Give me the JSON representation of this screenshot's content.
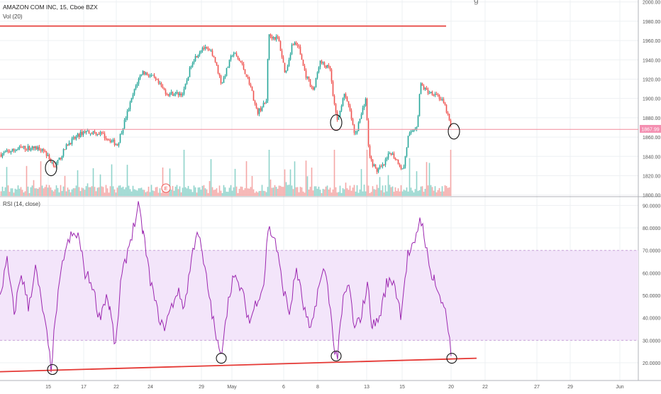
{
  "header": {
    "symbol_line": "AMAZON COM INC, 15, Cboe BZX",
    "volume_indicator": "Vol (20)",
    "rsi_indicator": "RSI (14, close)",
    "earnings_marker": "E",
    "truncated_top_char": "g"
  },
  "colors": {
    "up": "#26a69a",
    "down": "#ef5350",
    "vol_up": "#8fd3cb",
    "vol_down": "#f4a7a6",
    "rsi_line": "#9c27b0",
    "rsi_band": "#f3e5fa",
    "annotation_line": "#e53935",
    "price_label_bg": "#f48fb1",
    "grid": "#eef0f3",
    "axis_text": "#555555"
  },
  "chart_data": [
    {
      "type": "candlestick",
      "title": "AMAZON COM INC, 15, Cboe BZX",
      "y_axis_ticks": [
        "2000.00",
        "1980.00",
        "1960.00",
        "1940.00",
        "1920.00",
        "1900.00",
        "1880.00",
        "1860.00",
        "1840.00",
        "1820.00",
        "1800.00"
      ],
      "ylim": [
        1799,
        2002
      ],
      "current_price_label": "1867.99",
      "horizontal_lines": [
        {
          "y": 1975,
          "x_start": "Apr 11",
          "x_end": "May 16",
          "color": "red"
        },
        {
          "y": 1867.99,
          "x_start": "Apr 11",
          "x_end": "Jun 1",
          "color": "pink"
        }
      ],
      "close_series": [
        {
          "x": 0,
          "y": 1842
        },
        {
          "x": 30,
          "y": 1849
        },
        {
          "x": 60,
          "y": 1848
        },
        {
          "x": 70,
          "y": 1836
        },
        {
          "x": 78,
          "y": 1830
        },
        {
          "x": 95,
          "y": 1853
        },
        {
          "x": 118,
          "y": 1866
        },
        {
          "x": 140,
          "y": 1864
        },
        {
          "x": 165,
          "y": 1852
        },
        {
          "x": 175,
          "y": 1876
        },
        {
          "x": 192,
          "y": 1915
        },
        {
          "x": 200,
          "y": 1928
        },
        {
          "x": 215,
          "y": 1922
        },
        {
          "x": 235,
          "y": 1905
        },
        {
          "x": 258,
          "y": 1905
        },
        {
          "x": 270,
          "y": 1938
        },
        {
          "x": 285,
          "y": 1953
        },
        {
          "x": 300,
          "y": 1946
        },
        {
          "x": 312,
          "y": 1915
        },
        {
          "x": 328,
          "y": 1948
        },
        {
          "x": 340,
          "y": 1936
        },
        {
          "x": 352,
          "y": 1915
        },
        {
          "x": 362,
          "y": 1885
        },
        {
          "x": 375,
          "y": 1897
        },
        {
          "x": 378,
          "y": 1965
        },
        {
          "x": 392,
          "y": 1962
        },
        {
          "x": 402,
          "y": 1925
        },
        {
          "x": 412,
          "y": 1958
        },
        {
          "x": 420,
          "y": 1955
        },
        {
          "x": 430,
          "y": 1925
        },
        {
          "x": 442,
          "y": 1908
        },
        {
          "x": 450,
          "y": 1938
        },
        {
          "x": 465,
          "y": 1930
        },
        {
          "x": 470,
          "y": 1895
        },
        {
          "x": 476,
          "y": 1876
        },
        {
          "x": 484,
          "y": 1905
        },
        {
          "x": 492,
          "y": 1890
        },
        {
          "x": 500,
          "y": 1860
        },
        {
          "x": 515,
          "y": 1900
        },
        {
          "x": 520,
          "y": 1840
        },
        {
          "x": 530,
          "y": 1825
        },
        {
          "x": 540,
          "y": 1830
        },
        {
          "x": 550,
          "y": 1845
        },
        {
          "x": 560,
          "y": 1835
        },
        {
          "x": 568,
          "y": 1825
        },
        {
          "x": 575,
          "y": 1860
        },
        {
          "x": 588,
          "y": 1873
        },
        {
          "x": 592,
          "y": 1915
        },
        {
          "x": 602,
          "y": 1907
        },
        {
          "x": 615,
          "y": 1905
        },
        {
          "x": 625,
          "y": 1895
        },
        {
          "x": 630,
          "y": 1885
        },
        {
          "x": 636,
          "y": 1868
        }
      ]
    },
    {
      "type": "line",
      "title": "RSI (14, close)",
      "y_axis_ticks": [
        "90.0000",
        "80.0000",
        "70.0000",
        "60.0000",
        "50.0000",
        "40.0000",
        "30.0000",
        "20.0000"
      ],
      "ylim": [
        12.1,
        93.6
      ],
      "band": [
        30,
        70
      ],
      "trendline": {
        "y_start": 16,
        "y_end": 22,
        "color": "red"
      },
      "series": [
        {
          "x": 0,
          "y": 50
        },
        {
          "x": 10,
          "y": 65
        },
        {
          "x": 20,
          "y": 42
        },
        {
          "x": 30,
          "y": 60
        },
        {
          "x": 40,
          "y": 45
        },
        {
          "x": 50,
          "y": 62
        },
        {
          "x": 60,
          "y": 44
        },
        {
          "x": 66,
          "y": 32
        },
        {
          "x": 72,
          "y": 18
        },
        {
          "x": 80,
          "y": 45
        },
        {
          "x": 90,
          "y": 68
        },
        {
          "x": 100,
          "y": 76
        },
        {
          "x": 110,
          "y": 77
        },
        {
          "x": 120,
          "y": 60
        },
        {
          "x": 130,
          "y": 55
        },
        {
          "x": 140,
          "y": 40
        },
        {
          "x": 150,
          "y": 50
        },
        {
          "x": 155,
          "y": 44
        },
        {
          "x": 163,
          "y": 26
        },
        {
          "x": 170,
          "y": 55
        },
        {
          "x": 180,
          "y": 70
        },
        {
          "x": 188,
          "y": 80
        },
        {
          "x": 195,
          "y": 89
        },
        {
          "x": 202,
          "y": 78
        },
        {
          "x": 210,
          "y": 60
        },
        {
          "x": 220,
          "y": 45
        },
        {
          "x": 230,
          "y": 35
        },
        {
          "x": 240,
          "y": 43
        },
        {
          "x": 250,
          "y": 52
        },
        {
          "x": 260,
          "y": 45
        },
        {
          "x": 270,
          "y": 66
        },
        {
          "x": 278,
          "y": 80
        },
        {
          "x": 285,
          "y": 68
        },
        {
          "x": 295,
          "y": 50
        },
        {
          "x": 303,
          "y": 34
        },
        {
          "x": 311,
          "y": 22
        },
        {
          "x": 318,
          "y": 40
        },
        {
          "x": 328,
          "y": 58
        },
        {
          "x": 340,
          "y": 53
        },
        {
          "x": 352,
          "y": 38
        },
        {
          "x": 362,
          "y": 48
        },
        {
          "x": 372,
          "y": 55
        },
        {
          "x": 378,
          "y": 80
        },
        {
          "x": 388,
          "y": 75
        },
        {
          "x": 398,
          "y": 55
        },
        {
          "x": 408,
          "y": 42
        },
        {
          "x": 418,
          "y": 62
        },
        {
          "x": 428,
          "y": 45
        },
        {
          "x": 438,
          "y": 33
        },
        {
          "x": 448,
          "y": 52
        },
        {
          "x": 458,
          "y": 62
        },
        {
          "x": 466,
          "y": 45
        },
        {
          "x": 470,
          "y": 28
        },
        {
          "x": 476,
          "y": 23
        },
        {
          "x": 484,
          "y": 48
        },
        {
          "x": 492,
          "y": 55
        },
        {
          "x": 500,
          "y": 34
        },
        {
          "x": 510,
          "y": 42
        },
        {
          "x": 518,
          "y": 55
        },
        {
          "x": 525,
          "y": 36
        },
        {
          "x": 535,
          "y": 40
        },
        {
          "x": 545,
          "y": 55
        },
        {
          "x": 555,
          "y": 57
        },
        {
          "x": 565,
          "y": 42
        },
        {
          "x": 575,
          "y": 68
        },
        {
          "x": 585,
          "y": 72
        },
        {
          "x": 592,
          "y": 85
        },
        {
          "x": 598,
          "y": 78
        },
        {
          "x": 605,
          "y": 62
        },
        {
          "x": 612,
          "y": 58
        },
        {
          "x": 620,
          "y": 48
        },
        {
          "x": 628,
          "y": 45
        },
        {
          "x": 632,
          "y": 35
        },
        {
          "x": 636,
          "y": 23
        }
      ],
      "annotations": [
        {
          "type": "ellipse",
          "pane": "rsi",
          "x": 74,
          "y": 17
        },
        {
          "type": "ellipse",
          "pane": "rsi",
          "x": 312,
          "y": 22
        },
        {
          "type": "ellipse",
          "pane": "rsi",
          "x": 474,
          "y": 23
        },
        {
          "type": "ellipse",
          "pane": "rsi",
          "x": 637,
          "y": 22
        },
        {
          "type": "ellipse",
          "pane": "price",
          "x": 72,
          "y": 1828
        },
        {
          "type": "ellipse",
          "pane": "price",
          "x": 474,
          "y": 1875
        },
        {
          "type": "ellipse",
          "pane": "price",
          "x": 640,
          "y": 1866
        }
      ]
    }
  ],
  "x_axis": {
    "labels": [
      "15",
      "17",
      "22",
      "24",
      "29",
      "May",
      "6",
      "8",
      "13",
      "15",
      "20",
      "22",
      "27",
      "29",
      "Jun"
    ],
    "label_positions": [
      68,
      118,
      164,
      212,
      284,
      327,
      400,
      448,
      517,
      567,
      636,
      684,
      757,
      804,
      874
    ]
  }
}
